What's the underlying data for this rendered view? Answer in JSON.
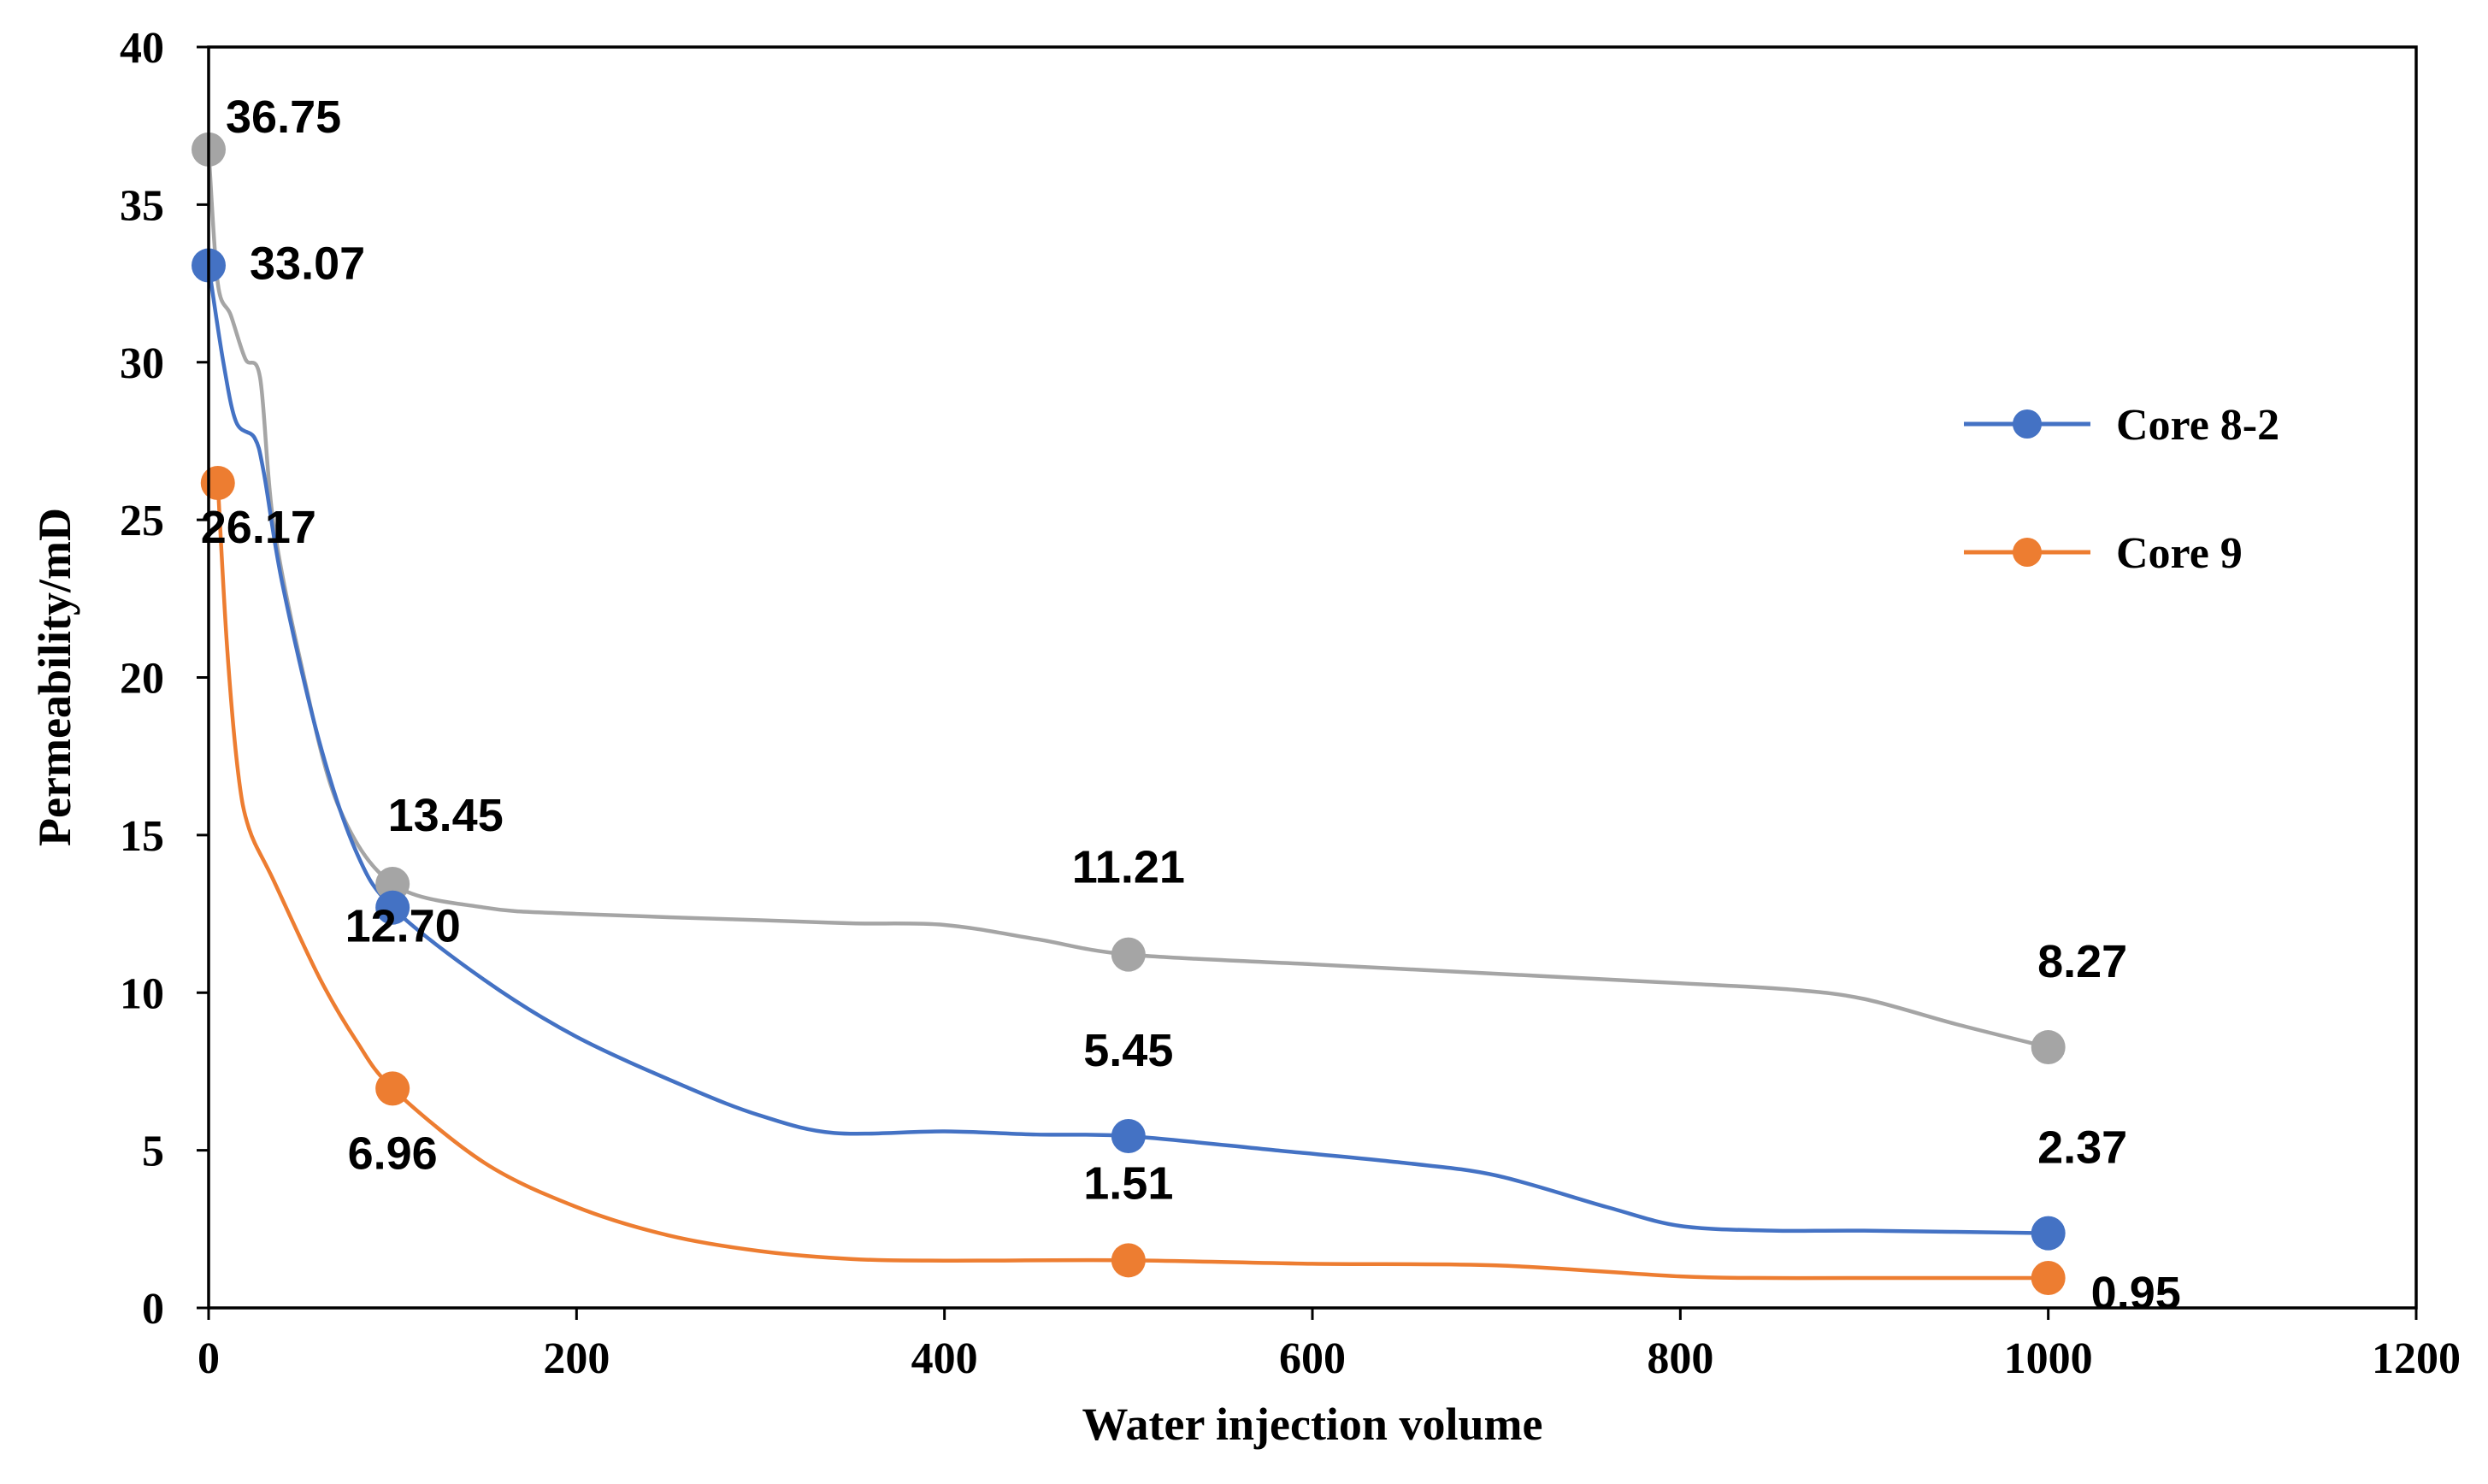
{
  "chart_data": {
    "type": "line",
    "title": "",
    "xlabel": "Water injection volume",
    "ylabel": "Permeability/mD",
    "xlim": [
      0,
      1200
    ],
    "ylim": [
      0,
      40
    ],
    "x_ticks": [
      "0",
      "200",
      "400",
      "600",
      "800",
      "1000",
      "1200"
    ],
    "y_ticks": [
      "0",
      "5",
      "10",
      "15",
      "20",
      "25",
      "30",
      "35",
      "40"
    ],
    "legend_position": "right",
    "series": [
      {
        "name": "Core 8-2",
        "color": "#4472C4",
        "in_legend": true,
        "points": [
          {
            "x": 0,
            "y": 33.07,
            "label": "33.07"
          },
          {
            "x": 100,
            "y": 12.7,
            "label": "12.70"
          },
          {
            "x": 500,
            "y": 5.45,
            "label": "5.45"
          },
          {
            "x": 1000,
            "y": 2.37,
            "label": "2.37"
          }
        ],
        "curve": [
          [
            0,
            33.07
          ],
          [
            8,
            30
          ],
          [
            15,
            28.1
          ],
          [
            25,
            27.6
          ],
          [
            30,
            26.5
          ],
          [
            40,
            23
          ],
          [
            60,
            18
          ],
          [
            80,
            14.5
          ],
          [
            100,
            12.7
          ],
          [
            150,
            10.4
          ],
          [
            200,
            8.6
          ],
          [
            260,
            7
          ],
          [
            300,
            6.1
          ],
          [
            340,
            5.55
          ],
          [
            400,
            5.6
          ],
          [
            450,
            5.5
          ],
          [
            500,
            5.45
          ],
          [
            580,
            5
          ],
          [
            650,
            4.6
          ],
          [
            700,
            4.2
          ],
          [
            760,
            3.2
          ],
          [
            800,
            2.6
          ],
          [
            850,
            2.45
          ],
          [
            900,
            2.45
          ],
          [
            1000,
            2.37
          ]
        ]
      },
      {
        "name": "Core 9",
        "color": "#ED7D31",
        "in_legend": true,
        "points": [
          {
            "x": 5,
            "y": 26.17,
            "label": "26.17"
          },
          {
            "x": 100,
            "y": 6.96,
            "label": "6.96"
          },
          {
            "x": 500,
            "y": 1.51,
            "label": "1.51"
          },
          {
            "x": 1000,
            "y": 0.95,
            "label": "0.95"
          }
        ],
        "curve": [
          [
            5,
            26.17
          ],
          [
            10,
            21
          ],
          [
            16,
            17
          ],
          [
            22,
            15.2
          ],
          [
            35,
            13.6
          ],
          [
            60,
            10.5
          ],
          [
            80,
            8.5
          ],
          [
            100,
            6.96
          ],
          [
            150,
            4.6
          ],
          [
            200,
            3.2
          ],
          [
            250,
            2.3
          ],
          [
            300,
            1.8
          ],
          [
            350,
            1.55
          ],
          [
            400,
            1.5
          ],
          [
            500,
            1.51
          ],
          [
            600,
            1.4
          ],
          [
            700,
            1.35
          ],
          [
            800,
            1.0
          ],
          [
            850,
            0.95
          ],
          [
            900,
            0.95
          ],
          [
            1000,
            0.95
          ]
        ]
      },
      {
        "name": "",
        "color": "#A5A5A5",
        "in_legend": false,
        "points": [
          {
            "x": 0,
            "y": 36.75,
            "label": "36.75"
          },
          {
            "x": 100,
            "y": 13.45,
            "label": "13.45"
          },
          {
            "x": 500,
            "y": 11.21,
            "label": "11.21"
          },
          {
            "x": 1000,
            "y": 8.27,
            "label": "8.27"
          }
        ],
        "curve": [
          [
            0,
            36.75
          ],
          [
            5,
            32.5
          ],
          [
            12,
            31.5
          ],
          [
            20,
            30.1
          ],
          [
            28,
            29.5
          ],
          [
            35,
            25
          ],
          [
            50,
            20.5
          ],
          [
            70,
            16
          ],
          [
            100,
            13.45
          ],
          [
            150,
            12.7
          ],
          [
            200,
            12.5
          ],
          [
            300,
            12.3
          ],
          [
            350,
            12.2
          ],
          [
            400,
            12.15
          ],
          [
            450,
            11.7
          ],
          [
            500,
            11.21
          ],
          [
            600,
            10.9
          ],
          [
            700,
            10.6
          ],
          [
            800,
            10.3
          ],
          [
            860,
            10.1
          ],
          [
            900,
            9.8
          ],
          [
            950,
            9.0
          ],
          [
            1000,
            8.27
          ]
        ]
      }
    ]
  }
}
